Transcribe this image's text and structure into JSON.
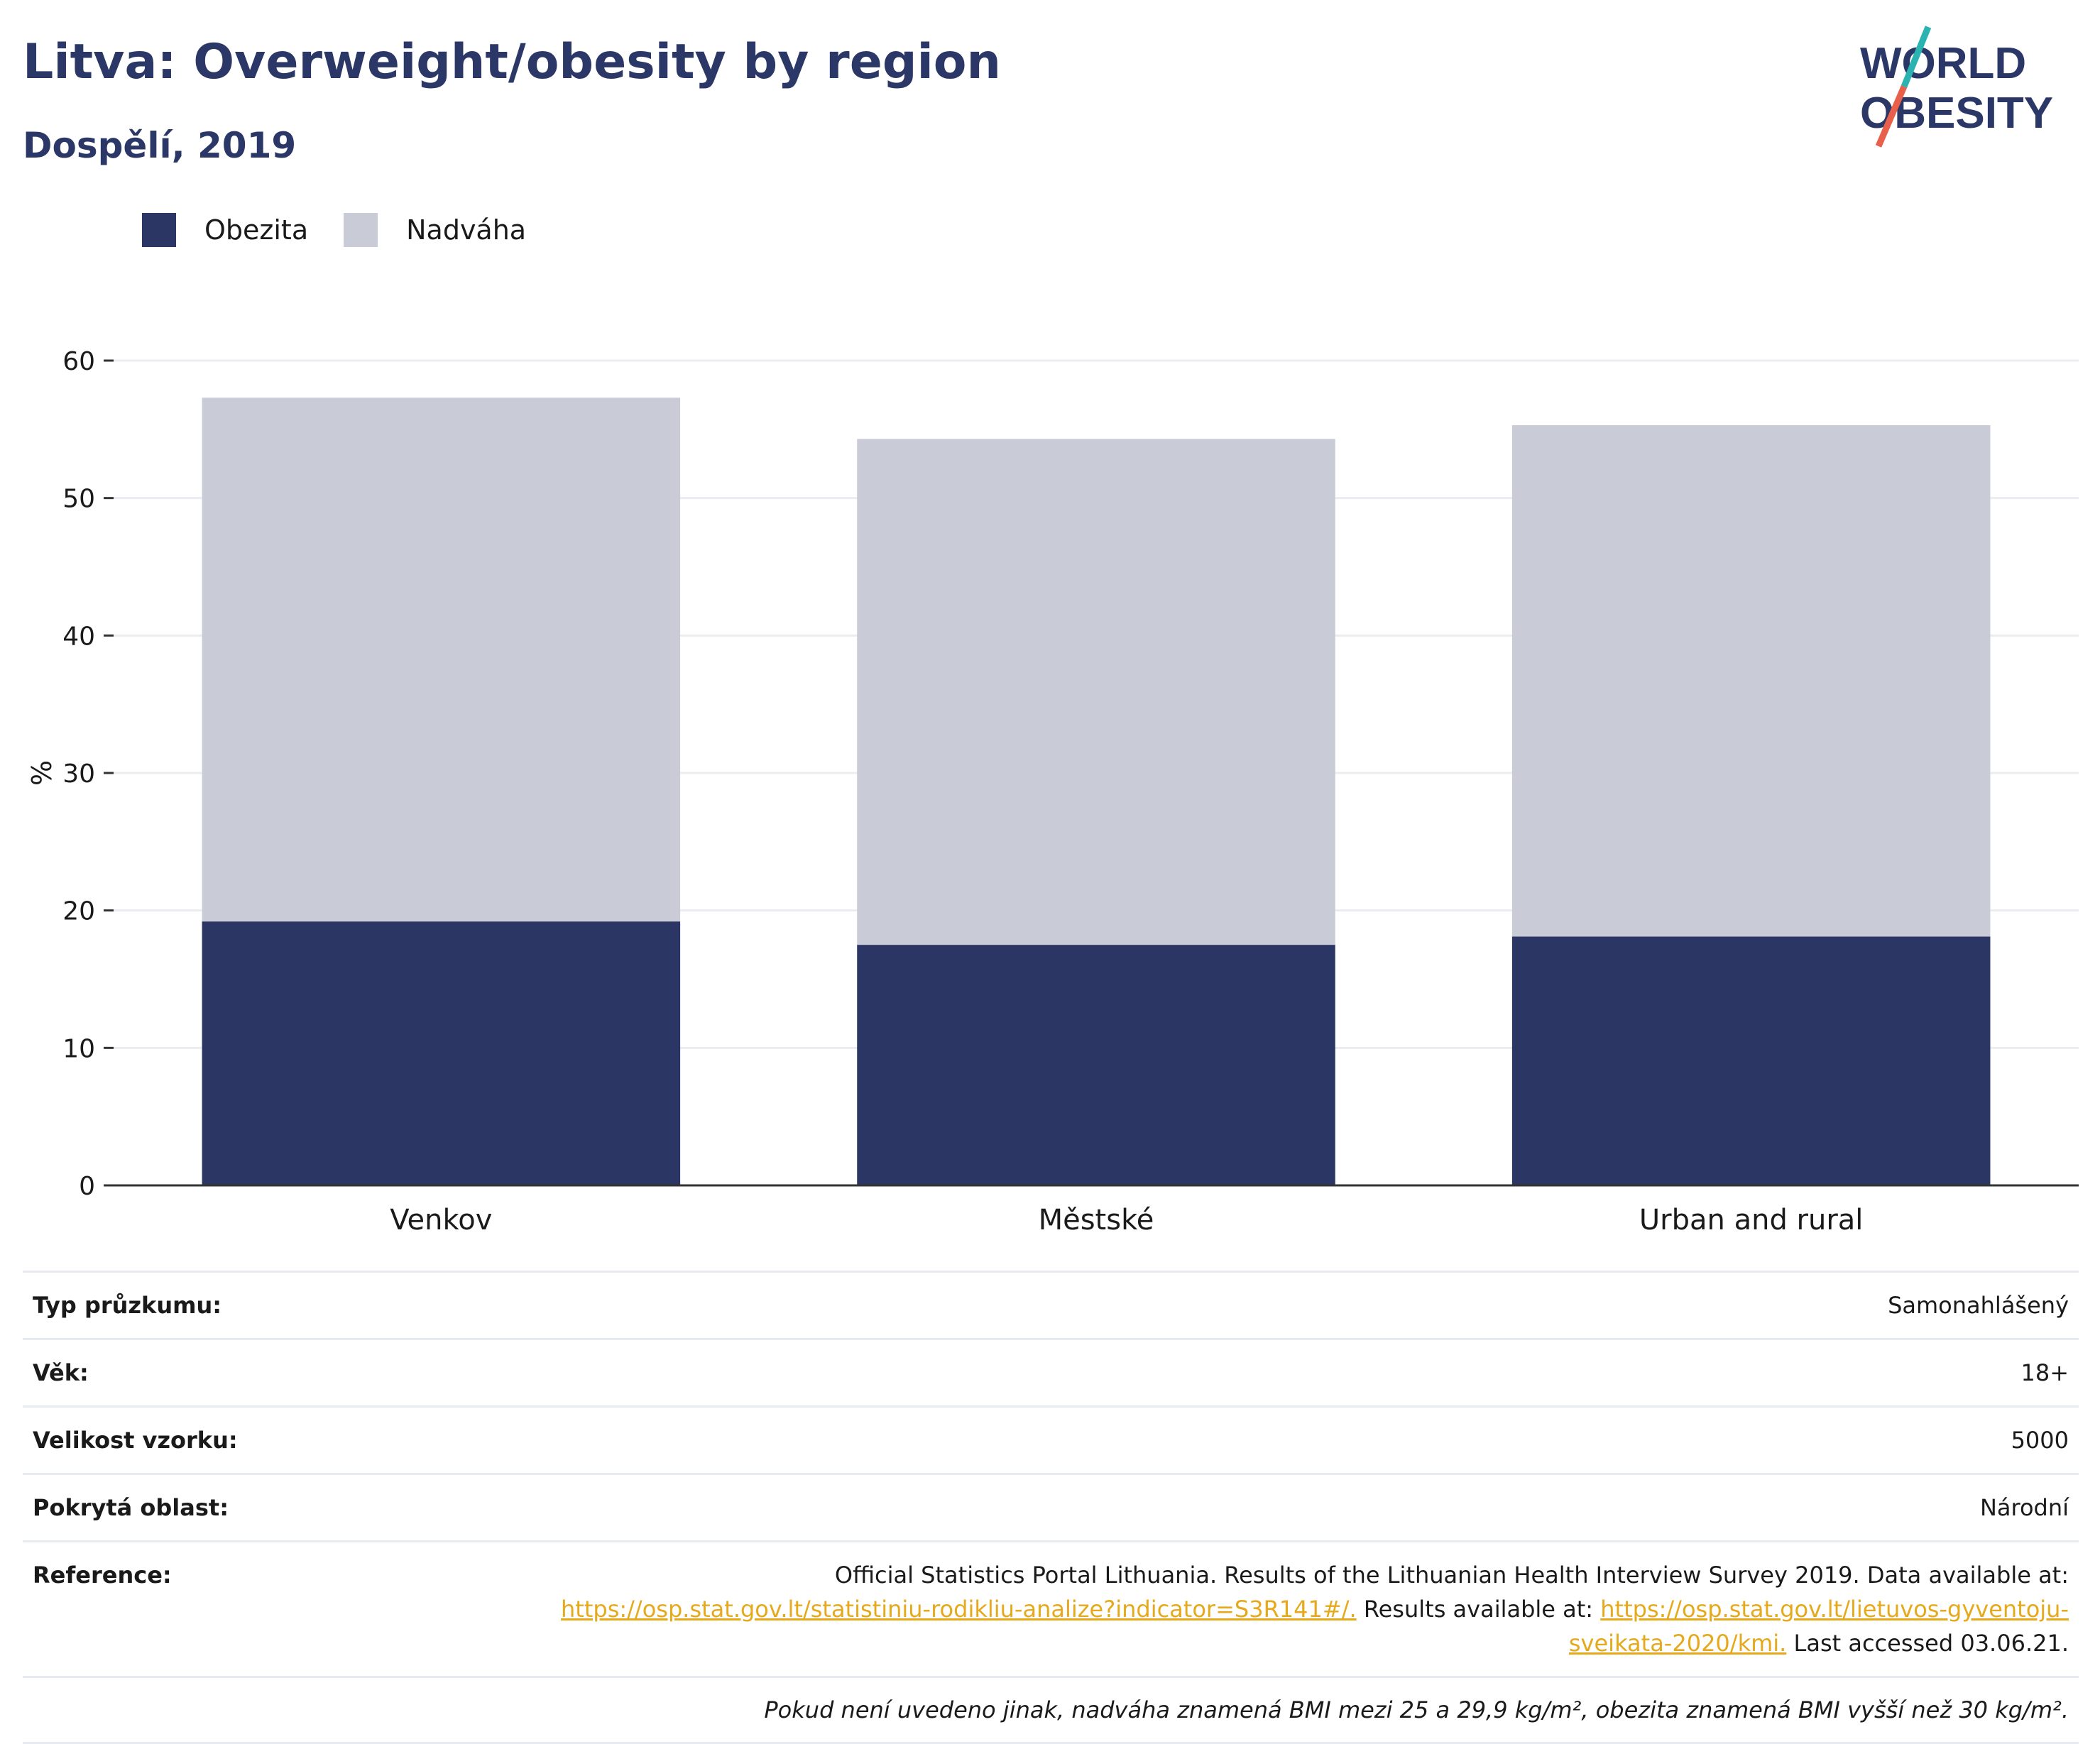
{
  "header": {
    "title": "Litva: Overweight/obesity by region",
    "subtitle": "Dospělí, 2019"
  },
  "logo": {
    "line1": "WORLD",
    "line2": "OBESITY"
  },
  "colors": {
    "obesity": "#2b3665",
    "overweight": "#c9cbd7",
    "brand": "#2b3867",
    "accent_red": "#e8604c",
    "accent_teal": "#2ab3b1",
    "link": "#e5a91b"
  },
  "chart_data": {
    "type": "bar",
    "stacked": true,
    "categories": [
      "Venkov",
      "Městské",
      "Urban and rural"
    ],
    "series": [
      {
        "name": "Obezita",
        "values": [
          19.2,
          17.5,
          18.1
        ]
      },
      {
        "name": "Nadváha",
        "values": [
          38.1,
          36.8,
          37.2
        ]
      }
    ],
    "ylabel": "%",
    "ylim": [
      0,
      60
    ],
    "yticks": [
      0,
      10,
      20,
      30,
      40,
      50,
      60
    ],
    "grid": true,
    "legend_position": "top-left"
  },
  "info": {
    "survey_type_label": "Typ průzkumu:",
    "survey_type_value": "Samonahlášený",
    "age_label": "Věk:",
    "age_value": "18+",
    "sample_label": "Velikost vzorku:",
    "sample_value": "5000",
    "area_label": "Pokrytá oblast:",
    "area_value": "Národní",
    "reference_label": "Reference:",
    "reference_text1": "Official Statistics Portal Lithuania. Results of the Lithuanian Health Interview Survey 2019. Data available at:",
    "reference_link1": "https://osp.stat.gov.lt/statistiniu-rodikliu-analize?indicator=S3R141#/.",
    "reference_text2": "Results available at:",
    "reference_link2": "https://osp.stat.gov.lt/lietuvos-gyventoju-sveikata-2020/kmi.",
    "reference_text3": "Last accessed 03.06.21.",
    "note": "Pokud není uvedeno jinak, nadváha znamená BMI mezi 25 a 29,9 kg/m², obezita znamená BMI vyšší než 30 kg/m²."
  }
}
